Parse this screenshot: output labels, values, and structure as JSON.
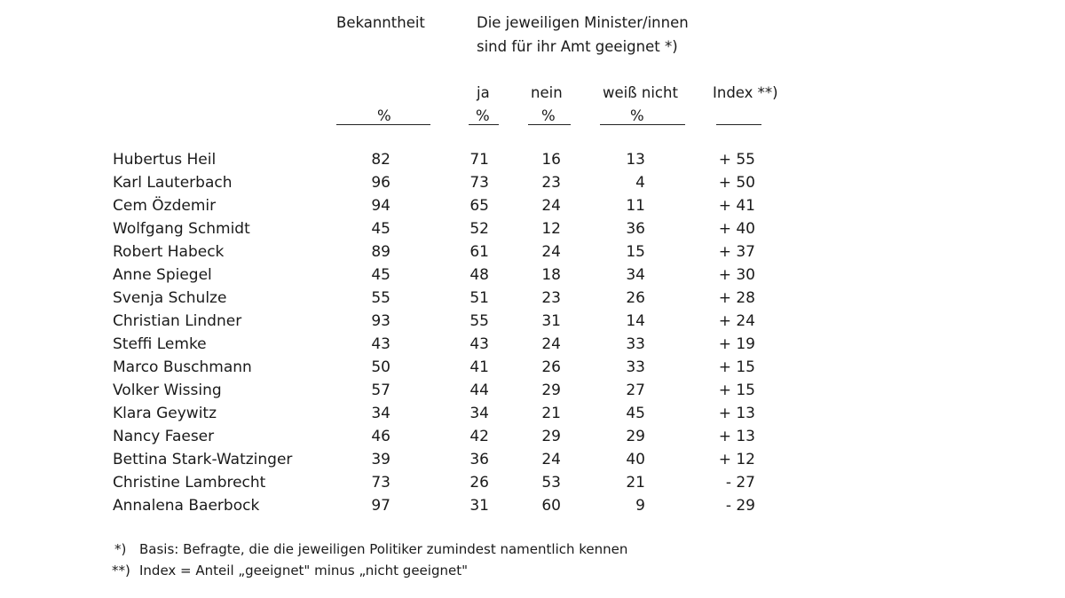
{
  "header": {
    "bekanntheit": "Bekanntheit",
    "question_line1": "Die jeweiligen Minister/innen",
    "question_line2": "sind für ihr Amt geeignet *)",
    "col_ja": "ja",
    "col_nein": "nein",
    "col_weiss": "weiß nicht",
    "col_index": "Index **)",
    "unit_bek": "%",
    "unit_ja": "%",
    "unit_nein": "%",
    "unit_weiss": "%"
  },
  "rows": [
    {
      "name": "Hubertus Heil",
      "bekanntheit": "82",
      "ja": "71",
      "nein": "16",
      "weiss": "13",
      "index": "+ 55"
    },
    {
      "name": "Karl Lauterbach",
      "bekanntheit": "96",
      "ja": "73",
      "nein": "23",
      "weiss": "4",
      "index": "+ 50"
    },
    {
      "name": "Cem Özdemir",
      "bekanntheit": "94",
      "ja": "65",
      "nein": "24",
      "weiss": "11",
      "index": "+ 41"
    },
    {
      "name": "Wolfgang Schmidt",
      "bekanntheit": "45",
      "ja": "52",
      "nein": "12",
      "weiss": "36",
      "index": "+ 40"
    },
    {
      "name": "Robert Habeck",
      "bekanntheit": "89",
      "ja": "61",
      "nein": "24",
      "weiss": "15",
      "index": "+ 37"
    },
    {
      "name": "Anne Spiegel",
      "bekanntheit": "45",
      "ja": "48",
      "nein": "18",
      "weiss": "34",
      "index": "+ 30"
    },
    {
      "name": "Svenja Schulze",
      "bekanntheit": "55",
      "ja": "51",
      "nein": "23",
      "weiss": "26",
      "index": "+ 28"
    },
    {
      "name": "Christian Lindner",
      "bekanntheit": "93",
      "ja": "55",
      "nein": "31",
      "weiss": "14",
      "index": "+ 24"
    },
    {
      "name": "Steffi Lemke",
      "bekanntheit": "43",
      "ja": "43",
      "nein": "24",
      "weiss": "33",
      "index": "+ 19"
    },
    {
      "name": "Marco Buschmann",
      "bekanntheit": "50",
      "ja": "41",
      "nein": "26",
      "weiss": "33",
      "index": "+ 15"
    },
    {
      "name": "Volker Wissing",
      "bekanntheit": "57",
      "ja": "44",
      "nein": "29",
      "weiss": "27",
      "index": "+ 15"
    },
    {
      "name": "Klara Geywitz",
      "bekanntheit": "34",
      "ja": "34",
      "nein": "21",
      "weiss": "45",
      "index": "+ 13"
    },
    {
      "name": "Nancy Faeser",
      "bekanntheit": "46",
      "ja": "42",
      "nein": "29",
      "weiss": "29",
      "index": "+ 13"
    },
    {
      "name": "Bettina Stark-Watzinger",
      "bekanntheit": "39",
      "ja": "36",
      "nein": "24",
      "weiss": "40",
      "index": "+ 12"
    },
    {
      "name": "Christine Lambrecht",
      "bekanntheit": "73",
      "ja": "26",
      "nein": "53",
      "weiss": "21",
      "index": "- 27"
    },
    {
      "name": "Annalena Baerbock",
      "bekanntheit": "97",
      "ja": "31",
      "nein": "60",
      "weiss": "9",
      "index": "- 29"
    }
  ],
  "footnotes": {
    "note1_marker": "*)",
    "note1_text": "Basis: Befragte, die die jeweiligen Politiker zumindest namentlich kennen",
    "note2_marker": "**)",
    "note2_text": "Index = Anteil „geeignet\" minus „nicht geeignet\""
  }
}
